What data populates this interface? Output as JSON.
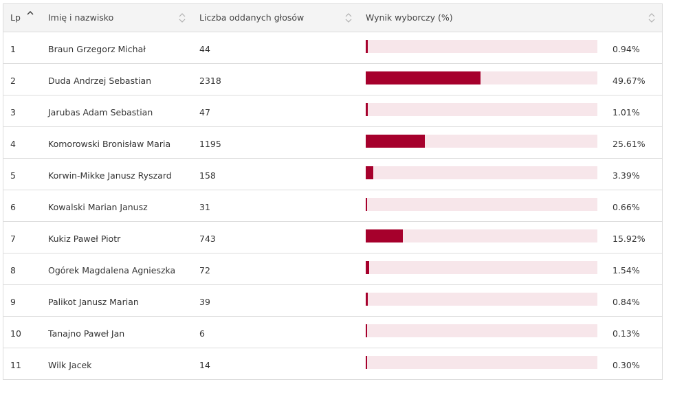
{
  "header": {
    "lp": "Lp",
    "name": "Imię i nazwisko",
    "votes": "Liczba oddanych głosów",
    "result": "Wynik wyborczy (%)"
  },
  "sort": {
    "lp_icon": "sort-ascending-icon",
    "other_icon": "sort-neutral-icon"
  },
  "colors": {
    "bar": "#a6002c",
    "track": "#f7e6ea"
  },
  "rows": [
    {
      "lp": "1",
      "name": "Braun Grzegorz Michał",
      "votes": "44",
      "result": "0.94%",
      "value": 0.94
    },
    {
      "lp": "2",
      "name": "Duda Andrzej Sebastian",
      "votes": "2318",
      "result": "49.67%",
      "value": 49.67
    },
    {
      "lp": "3",
      "name": "Jarubas Adam Sebastian",
      "votes": "47",
      "result": "1.01%",
      "value": 1.01
    },
    {
      "lp": "4",
      "name": "Komorowski Bronisław Maria",
      "votes": "1195",
      "result": "25.61%",
      "value": 25.61
    },
    {
      "lp": "5",
      "name": "Korwin-Mikke Janusz Ryszard",
      "votes": "158",
      "result": "3.39%",
      "value": 3.39
    },
    {
      "lp": "6",
      "name": "Kowalski Marian Janusz",
      "votes": "31",
      "result": "0.66%",
      "value": 0.66
    },
    {
      "lp": "7",
      "name": "Kukiz Paweł Piotr",
      "votes": "743",
      "result": "15.92%",
      "value": 15.92
    },
    {
      "lp": "8",
      "name": "Ogórek Magdalena Agnieszka",
      "votes": "72",
      "result": "1.54%",
      "value": 1.54
    },
    {
      "lp": "9",
      "name": "Palikot Janusz Marian",
      "votes": "39",
      "result": "0.84%",
      "value": 0.84
    },
    {
      "lp": "10",
      "name": "Tanajno Paweł Jan",
      "votes": "6",
      "result": "0.13%",
      "value": 0.13
    },
    {
      "lp": "11",
      "name": "Wilk Jacek",
      "votes": "14",
      "result": "0.30%",
      "value": 0.3
    }
  ]
}
